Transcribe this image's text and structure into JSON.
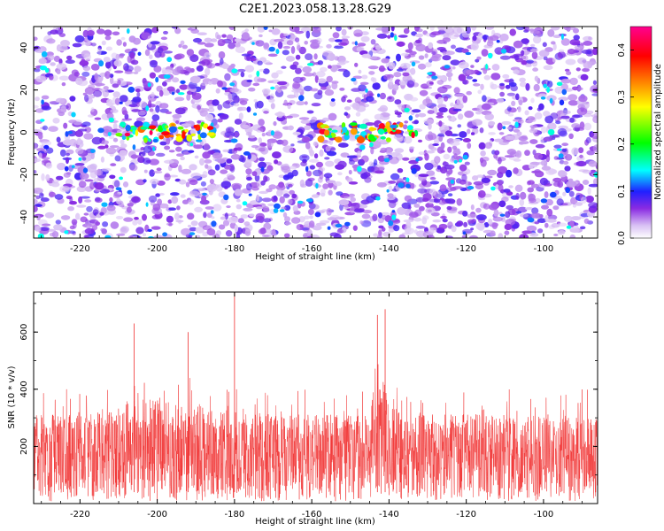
{
  "title": "C2E1.2023.058.13.28.G29",
  "colors": {
    "snr_line": "#f03030",
    "colorbar": [
      "#ffffff",
      "#c8a8f0",
      "#8a2be2",
      "#2020ff",
      "#00ffff",
      "#00ff00",
      "#ffff00",
      "#ff8000",
      "#ff0000",
      "#ff00aa"
    ]
  },
  "chart_data": [
    {
      "type": "heatmap",
      "xlabel": "Height of straight line (km)",
      "ylabel": "Frequency (Hz)",
      "xlim": [
        -232,
        -86
      ],
      "ylim": [
        -50,
        50
      ],
      "xticks": [
        "-220",
        "-200",
        "-180",
        "-160",
        "-140",
        "-120",
        "-100"
      ],
      "yticks": [
        "40",
        "20",
        "0",
        "-20",
        "-40"
      ],
      "colorbar": {
        "label": "Normalized spectral amplitude",
        "range": [
          0.0,
          0.45
        ],
        "ticks": [
          "0.0",
          "0.1",
          "0.2",
          "0.3",
          "0.4"
        ]
      },
      "signal_band_center_hz": 0,
      "signal_segments_km": [
        [
          -210,
          -185
        ],
        [
          -158,
          -133
        ]
      ],
      "peak_amplitude": 0.45
    },
    {
      "type": "line",
      "xlabel": "Height of straight line (km)",
      "ylabel": "SNR (10 * v/v)",
      "xlim": [
        -232,
        -86
      ],
      "ylim": [
        0,
        740
      ],
      "xticks": [
        "-220",
        "-200",
        "-180",
        "-160",
        "-140",
        "-120",
        "-100"
      ],
      "yticks": [
        "600",
        "400",
        "200"
      ],
      "baseline_mean": 160,
      "peak_values": [
        {
          "x": -206,
          "y": 630
        },
        {
          "x": -192,
          "y": 600
        },
        {
          "x": -180,
          "y": 740
        },
        {
          "x": -143,
          "y": 660
        },
        {
          "x": -141,
          "y": 680
        }
      ]
    }
  ]
}
